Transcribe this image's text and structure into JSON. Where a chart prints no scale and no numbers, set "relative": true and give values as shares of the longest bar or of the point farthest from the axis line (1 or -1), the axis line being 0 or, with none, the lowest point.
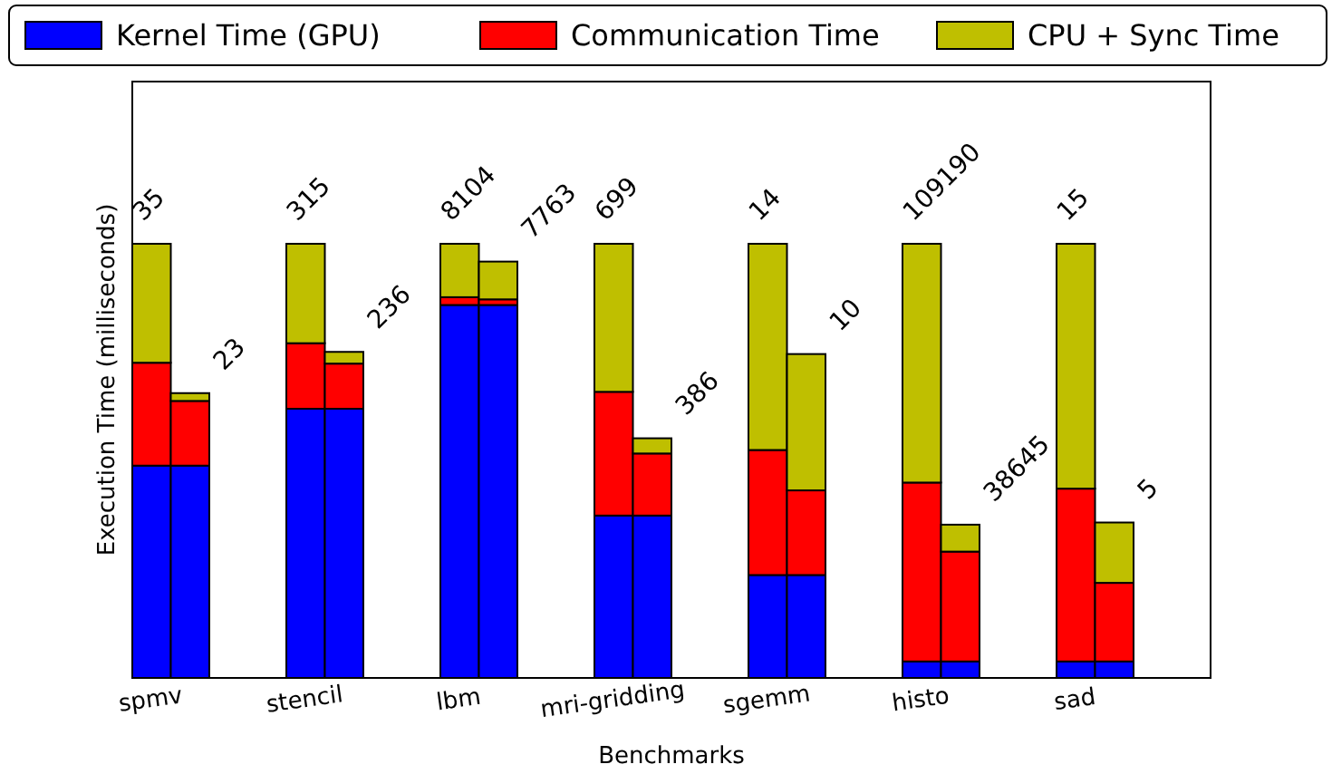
{
  "chart_data": {
    "type": "bar",
    "stacked": true,
    "relative": true,
    "xlabel": "Benchmarks",
    "ylabel": "Execution Time (milliseconds)",
    "legend": "top",
    "categories": [
      "spmv",
      null,
      null,
      null,
      "stencil",
      null,
      null,
      null,
      "lbm",
      null,
      null,
      null,
      "mri-gridding",
      null,
      null,
      null,
      "sgemm",
      null,
      null,
      null,
      "histo",
      null,
      null,
      null,
      "sad",
      null,
      null,
      null
    ],
    "series": [
      {
        "name": "Kernel Time (GPU)",
        "color": "#0000ff",
        "values": [
          0.489,
          0.489,
          null,
          null,
          0.62,
          0.62,
          null,
          null,
          0.859,
          0.859,
          null,
          null,
          0.374,
          0.374,
          null,
          null,
          0.237,
          0.237,
          null,
          null,
          0.038,
          0.038,
          null,
          null,
          0.038,
          0.038,
          null,
          null
        ]
      },
      {
        "name": "Communication Time",
        "color": "#ff0000",
        "values": [
          0.237,
          0.149,
          null,
          null,
          0.151,
          0.104,
          null,
          null,
          0.018,
          0.013,
          null,
          null,
          0.285,
          0.143,
          null,
          null,
          0.288,
          0.195,
          null,
          null,
          0.412,
          0.253,
          null,
          null,
          0.398,
          0.181,
          null,
          null
        ]
      },
      {
        "name": "CPU + Sync Time",
        "color": "#bfbf00",
        "values": [
          0.274,
          0.018,
          null,
          null,
          0.229,
          0.027,
          null,
          null,
          0.123,
          0.087,
          null,
          null,
          0.341,
          0.035,
          null,
          null,
          0.475,
          0.314,
          null,
          null,
          0.55,
          0.062,
          null,
          null,
          0.564,
          0.139,
          null,
          null
        ]
      }
    ],
    "annotations": [
      "35",
      "23",
      "315",
      "236",
      "8104",
      "7763",
      "699",
      "386",
      "14",
      "10",
      "109190",
      "38645",
      "15",
      "5"
    ]
  }
}
